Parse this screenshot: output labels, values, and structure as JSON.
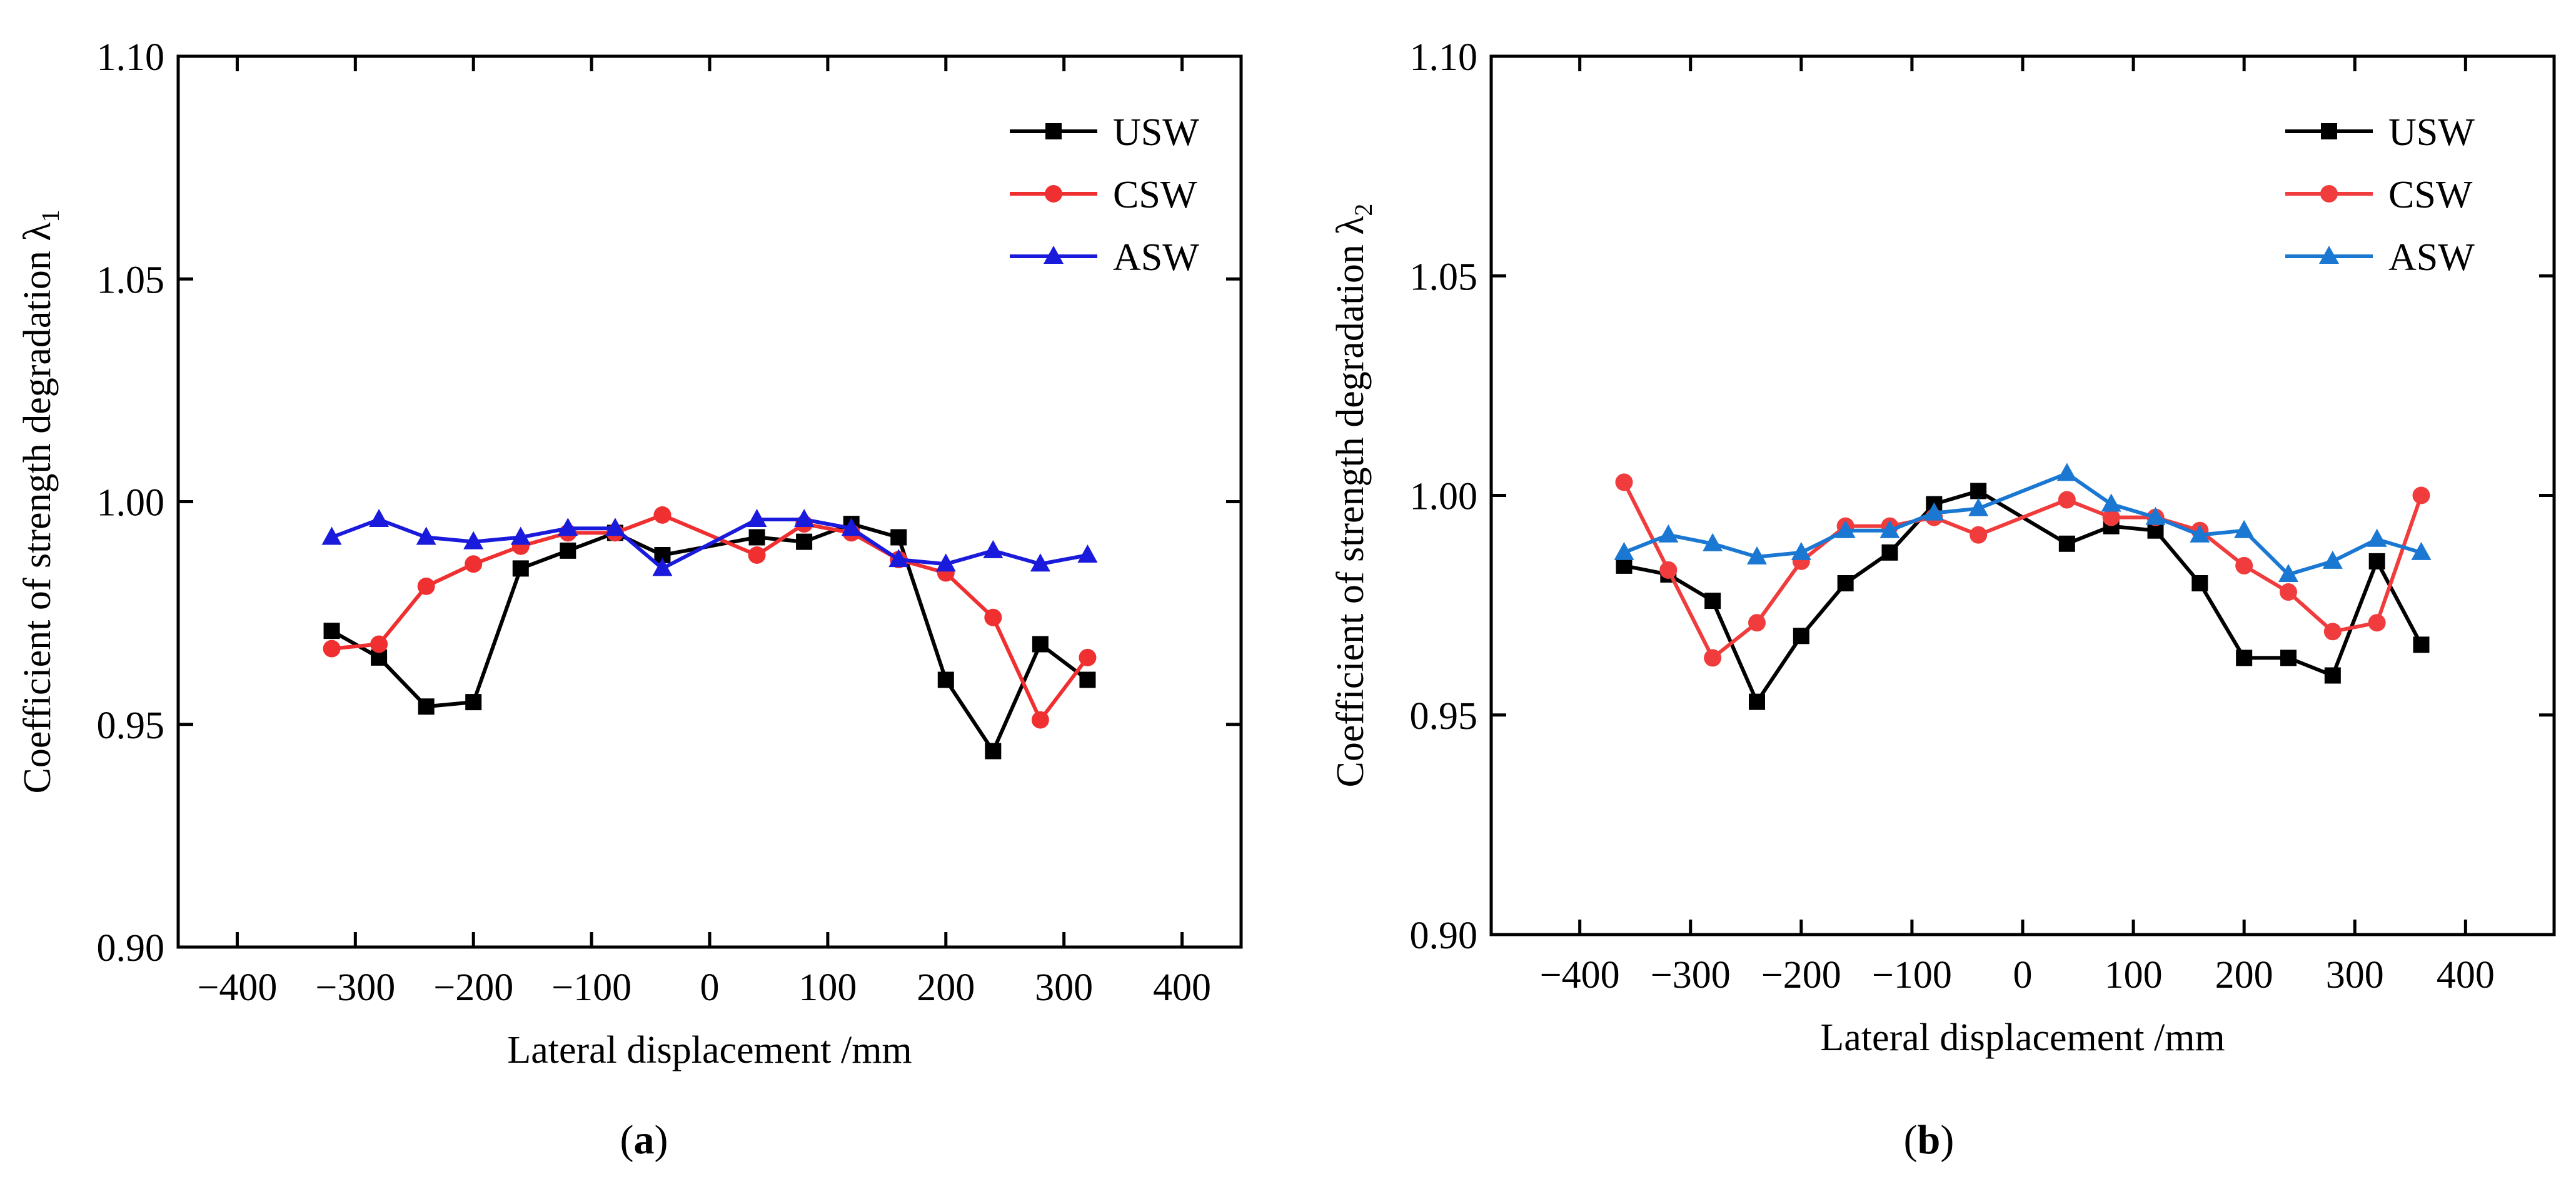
{
  "chart_data": [
    {
      "type": "line",
      "panel_label": "a",
      "xlabel": "Lateral displacement /mm",
      "ylabel": "Coefficient of strength degradation λ",
      "ylabel_subscript": "1",
      "xlim": [
        -450,
        450
      ],
      "ylim": [
        0.9,
        1.1
      ],
      "xticks": [
        -400,
        -300,
        -200,
        -100,
        0,
        100,
        200,
        300,
        400
      ],
      "xtick_labels": [
        "−400",
        "−300",
        "−200",
        "−100",
        "0",
        "100",
        "200",
        "300",
        "400"
      ],
      "yticks": [
        0.9,
        0.95,
        1.0,
        1.05,
        1.1
      ],
      "ytick_labels": [
        "0.90",
        "0.95",
        "1.00",
        "1.05",
        "1.10"
      ],
      "legend_position": "top-right",
      "grid": false,
      "series": [
        {
          "name": "USW",
          "color": "#000000",
          "marker": "square",
          "x": [
            -320,
            -280,
            -240,
            -200,
            -160,
            -120,
            -80,
            -40,
            40,
            80,
            120,
            160,
            200,
            240,
            280,
            320
          ],
          "y": [
            0.971,
            0.965,
            0.954,
            0.955,
            0.985,
            0.989,
            0.993,
            0.988,
            0.992,
            0.991,
            0.995,
            0.992,
            0.96,
            0.944,
            0.968,
            0.96
          ]
        },
        {
          "name": "CSW",
          "color": "#f03030",
          "marker": "circle",
          "x": [
            -320,
            -280,
            -240,
            -200,
            -160,
            -120,
            -80,
            -40,
            40,
            80,
            120,
            160,
            200,
            240,
            280,
            320
          ],
          "y": [
            0.967,
            0.968,
            0.981,
            0.986,
            0.99,
            0.993,
            0.993,
            0.997,
            0.988,
            0.995,
            0.993,
            0.987,
            0.984,
            0.974,
            0.951,
            0.965
          ]
        },
        {
          "name": "ASW",
          "color": "#1a1adc",
          "marker": "triangle",
          "x": [
            -320,
            -280,
            -240,
            -200,
            -160,
            -120,
            -80,
            -40,
            40,
            80,
            120,
            160,
            200,
            240,
            280,
            320
          ],
          "y": [
            0.992,
            0.996,
            0.992,
            0.991,
            0.992,
            0.994,
            0.994,
            0.985,
            0.996,
            0.996,
            0.994,
            0.987,
            0.986,
            0.989,
            0.986,
            0.988
          ]
        }
      ]
    },
    {
      "type": "line",
      "panel_label": "b",
      "xlabel": "Lateral displacement /mm",
      "ylabel": "Coefficient of strength degradation λ",
      "ylabel_subscript": "2",
      "xlim": [
        -480,
        480
      ],
      "ylim": [
        0.9,
        1.1
      ],
      "xticks": [
        -400,
        -300,
        -200,
        -100,
        0,
        100,
        200,
        300,
        400
      ],
      "xtick_labels": [
        "−400",
        "−300",
        "−200",
        "−100",
        "0",
        "100",
        "200",
        "300",
        "400"
      ],
      "yticks": [
        0.9,
        0.95,
        1.0,
        1.05,
        1.1
      ],
      "ytick_labels": [
        "0.90",
        "0.95",
        "1.00",
        "1.05",
        "1.10"
      ],
      "legend_position": "top-right",
      "grid": false,
      "series": [
        {
          "name": "USW",
          "color": "#000000",
          "marker": "square",
          "x": [
            -360,
            -320,
            -280,
            -240,
            -200,
            -160,
            -120,
            -80,
            -40,
            40,
            80,
            120,
            160,
            200,
            240,
            280,
            320,
            360
          ],
          "y": [
            0.984,
            0.982,
            0.976,
            0.953,
            0.968,
            0.98,
            0.987,
            0.998,
            1.001,
            0.989,
            0.993,
            0.992,
            0.98,
            0.963,
            0.963,
            0.959,
            0.985,
            0.966
          ]
        },
        {
          "name": "CSW",
          "color": "#f03c3c",
          "marker": "circle",
          "x": [
            -360,
            -320,
            -280,
            -240,
            -200,
            -160,
            -120,
            -80,
            -40,
            40,
            80,
            120,
            160,
            200,
            240,
            280,
            320,
            360
          ],
          "y": [
            1.003,
            0.983,
            0.963,
            0.971,
            0.985,
            0.993,
            0.993,
            0.995,
            0.991,
            0.999,
            0.995,
            0.995,
            0.992,
            0.984,
            0.978,
            0.969,
            0.971,
            1.0
          ]
        },
        {
          "name": "ASW",
          "color": "#1a78d2",
          "marker": "triangle",
          "x": [
            -360,
            -320,
            -280,
            -240,
            -200,
            -160,
            -120,
            -80,
            -40,
            40,
            80,
            120,
            160,
            200,
            240,
            280,
            320,
            360
          ],
          "y": [
            0.987,
            0.991,
            0.989,
            0.986,
            0.987,
            0.992,
            0.992,
            0.996,
            0.997,
            1.005,
            0.998,
            0.995,
            0.991,
            0.992,
            0.982,
            0.985,
            0.99,
            0.987
          ]
        }
      ]
    }
  ]
}
